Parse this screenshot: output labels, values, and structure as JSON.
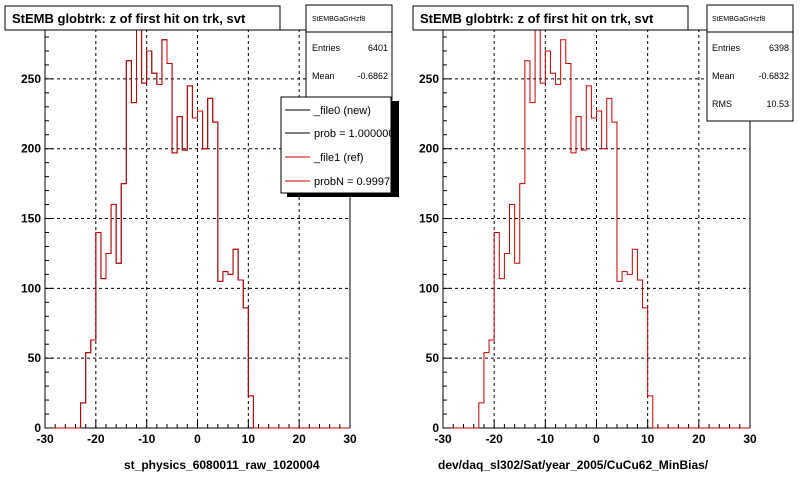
{
  "chart_data": [
    {
      "type": "histogram",
      "title": "StEMB globtrk: z of first hit on trk, svt",
      "xlabel": "st_physics_6080011_raw_1020004",
      "xlim": [
        -30,
        30
      ],
      "ylim": [
        0,
        285
      ],
      "xticks": [
        -30,
        -20,
        -10,
        0,
        10,
        20,
        30
      ],
      "yticks": [
        0,
        50,
        100,
        150,
        200,
        250
      ],
      "grid": true,
      "bin_edges_start": -23,
      "bin_width": 1,
      "series": [
        {
          "name": "_file0 (new)",
          "color": "#000000",
          "values": [
            18,
            54,
            63,
            140,
            107,
            125,
            160,
            118,
            175,
            263,
            233,
            285,
            247,
            270,
            254,
            246,
            278,
            261,
            197,
            223,
            199,
            245,
            222,
            227,
            200,
            236,
            219,
            105,
            112,
            110,
            128,
            106,
            86,
            23,
            0
          ]
        },
        {
          "name": "_file1 (ref)",
          "color": "#cc0000",
          "values": [
            18,
            54,
            63,
            140,
            107,
            125,
            160,
            118,
            175,
            263,
            233,
            285,
            247,
            270,
            254,
            246,
            278,
            261,
            197,
            223,
            199,
            245,
            222,
            227,
            200,
            236,
            219,
            105,
            112,
            110,
            128,
            106,
            86,
            23,
            0
          ]
        }
      ],
      "stats": {
        "name": "StEMBGaGrHzf8",
        "entries": "6401",
        "mean": "-0.6862"
      },
      "legend": {
        "position": "top-right",
        "entries": [
          "_file0 (new)",
          "prob = 1.000000",
          "_file1 (ref)",
          "probN = 0.99977"
        ]
      }
    },
    {
      "type": "histogram",
      "title": "StEMB globtrk: z of first hit on trk, svt",
      "xlabel": "dev/daq_sl302/Sat/year_2005/CuCu62_MinBias/",
      "xlim": [
        -30,
        30
      ],
      "ylim": [
        0,
        285
      ],
      "xticks": [
        -30,
        -20,
        -10,
        0,
        10,
        20,
        30
      ],
      "yticks": [
        0,
        50,
        100,
        150,
        200,
        250
      ],
      "grid": true,
      "bin_edges_start": -23,
      "bin_width": 1,
      "series": [
        {
          "name": "",
          "color": "#cc0000",
          "values": [
            18,
            54,
            63,
            140,
            107,
            125,
            160,
            118,
            175,
            263,
            233,
            285,
            247,
            270,
            254,
            246,
            278,
            261,
            197,
            223,
            199,
            245,
            222,
            227,
            200,
            236,
            219,
            105,
            112,
            110,
            128,
            106,
            86,
            23,
            0
          ]
        }
      ],
      "stats": {
        "name": "StEMBGaGrHzf8",
        "entries": "6398",
        "mean": "-0.6832",
        "rms": "10.53"
      }
    }
  ],
  "stats_labels": {
    "entries": "Entries",
    "mean": "Mean",
    "rms": "RMS"
  }
}
